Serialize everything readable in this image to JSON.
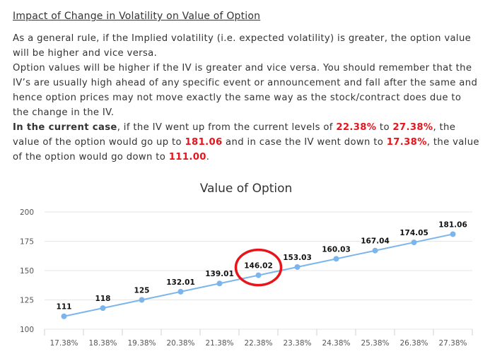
{
  "text": {
    "heading": "Impact of Change in Volatility on Value of Option",
    "para1": "As a general rule, if the Implied volatility (i.e. expected volatility) is greater, the option value will be higher and vice versa.",
    "para2": "Option values will be higher if the IV is greater and vice versa. You should remember that the IV’s are usually high ahead of any specific event or announcement and fall after the same and hence option prices may not move exactly the same way as the stock/contract does due to the change in the IV.",
    "case": {
      "lead": "In the current case",
      "t1": ", if the IV went up from the current levels of ",
      "iv_current": "22.38%",
      "t2": " to ",
      "iv_up": "27.38%",
      "t3": ", the value of the option would go up to ",
      "value_up": "181.06",
      "t4": " and in case the IV went down to ",
      "iv_down": "17.38%",
      "t5": ", the value of the option would go down to ",
      "value_down": "111.00",
      "t6": "."
    }
  },
  "colors": {
    "line": "#7cb5ec",
    "highlight_circle": "#e8141b",
    "red_text": "#e8141b",
    "grid": "#e6e6e6"
  },
  "chart_data": {
    "type": "line",
    "title": "Value of Option",
    "categories": [
      "17.38%",
      "18.38%",
      "19.38%",
      "20.38%",
      "21.38%",
      "22.38%",
      "23.38%",
      "24.38%",
      "25.38%",
      "26.38%",
      "27.38%"
    ],
    "values": [
      111,
      118,
      125,
      132.01,
      139.01,
      146.02,
      153.03,
      160.03,
      167.04,
      174.05,
      181.06
    ],
    "data_labels": [
      "111",
      "118",
      "125",
      "132.01",
      "139.01",
      "146.02",
      "153.03",
      "160.03",
      "167.04",
      "174.05",
      "181.06"
    ],
    "ylim": [
      100,
      200
    ],
    "yticks": [
      "100",
      "125",
      "150",
      "175",
      "200"
    ],
    "highlighted_category": "22.38%",
    "grid": true,
    "legend": "none"
  }
}
